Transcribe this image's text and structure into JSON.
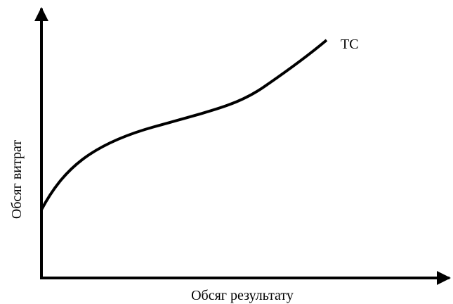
{
  "curve_label": "TC",
  "y_axis_label": "Обсяг витрат",
  "x_axis_label": "Обсяг результату"
}
